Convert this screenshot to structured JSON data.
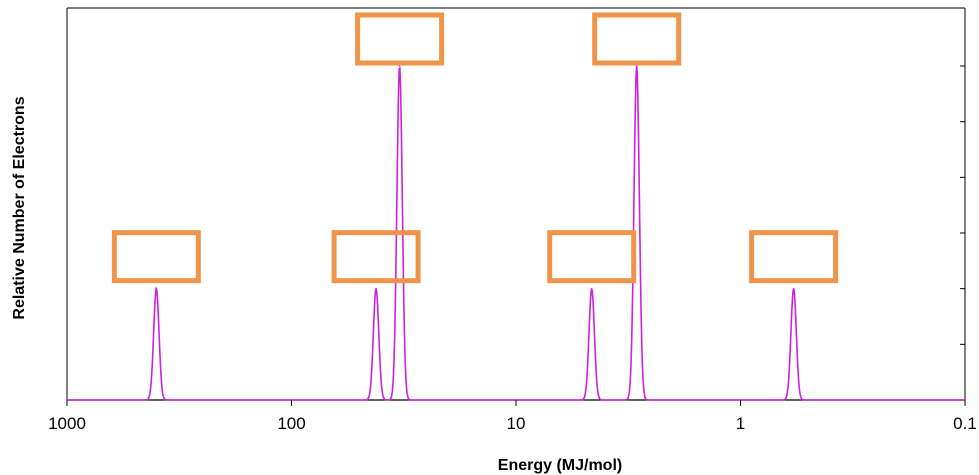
{
  "chart_data": {
    "type": "line",
    "title": "",
    "xlabel": "Energy (MJ/mol)",
    "ylabel": "Relative  Number  of Electrons",
    "x_scale": "log",
    "x_reversed": true,
    "xlim": [
      1000,
      0.1
    ],
    "ylim": [
      0,
      6
    ],
    "x_ticks": [
      {
        "value": 1000,
        "label": "1000"
      },
      {
        "value": 100,
        "label": "100"
      },
      {
        "value": 10,
        "label": "10"
      },
      {
        "value": 1,
        "label": "1"
      },
      {
        "value": 0.1,
        "label": "0.1"
      }
    ],
    "y_ticks_right": [
      1,
      2,
      3,
      4,
      5,
      6
    ],
    "grid": false,
    "series": [
      {
        "color": "#cc22dd",
        "peaks": [
          {
            "x": 400,
            "y": 2
          },
          {
            "x": 42,
            "y": 2
          },
          {
            "x": 33,
            "y": 6
          },
          {
            "x": 4.6,
            "y": 2
          },
          {
            "x": 2.9,
            "y": 6
          },
          {
            "x": 0.58,
            "y": 2
          }
        ]
      }
    ],
    "annotation_boxes": [
      {
        "peak_index": 0,
        "text": ""
      },
      {
        "peak_index": 1,
        "text": ""
      },
      {
        "peak_index": 2,
        "text": ""
      },
      {
        "peak_index": 3,
        "text": ""
      },
      {
        "peak_index": 4,
        "text": ""
      },
      {
        "peak_index": 5,
        "text": ""
      }
    ],
    "box_color": "#f0944a"
  }
}
